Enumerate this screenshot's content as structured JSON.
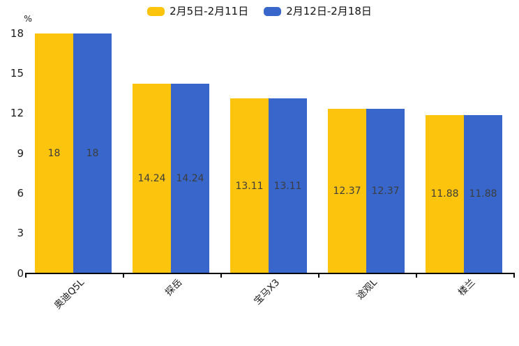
{
  "chart_data": {
    "type": "bar",
    "title": "",
    "unit_label": "%",
    "categories": [
      "奥迪Q5L",
      "探岳",
      "宝马X3",
      "途观L",
      "楼兰"
    ],
    "series": [
      {
        "name": "2月5日-2月11日",
        "color": "#FCC40C",
        "values": [
          18,
          14.24,
          13.11,
          12.37,
          11.88
        ]
      },
      {
        "name": "2月12日-2月18日",
        "color": "#3866CB",
        "values": [
          18,
          14.24,
          13.11,
          12.37,
          11.88
        ]
      }
    ],
    "value_labels": [
      [
        "18",
        "14.24",
        "13.11",
        "12.37",
        "11.88"
      ],
      [
        "18",
        "14.24",
        "13.11",
        "12.37",
        "11.88"
      ]
    ],
    "yticks": [
      0,
      3,
      6,
      9,
      12,
      15,
      18
    ],
    "ylim": [
      0,
      18
    ],
    "grid": false,
    "legend_position": "top",
    "bar_value_labels_shown": true
  },
  "colors": {
    "background": "#ffffff",
    "axis": "#000000",
    "tick_label": "#1a1a1a",
    "bar_value_label": "#3d3d3d",
    "series_yellow": "#FCC40C",
    "series_blue": "#3866CB"
  }
}
